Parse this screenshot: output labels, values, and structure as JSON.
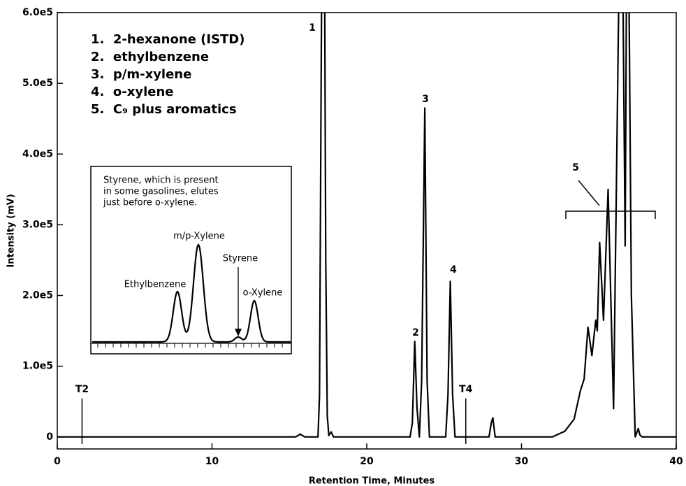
{
  "chart_data": {
    "type": "line",
    "xlabel": "Retention Time, Minutes",
    "ylabel": "Intensity (mV)",
    "xlim": [
      0,
      40
    ],
    "xticks": [
      0,
      10,
      20,
      30,
      40
    ],
    "ylim": [
      -17000,
      600000
    ],
    "yticks": [
      0,
      {
        "value": 100000,
        "label": "1.0e5"
      },
      {
        "value": 200000,
        "label": "2.0e5"
      },
      {
        "value": 300000,
        "label": "3.0e5"
      },
      {
        "value": 400000,
        "label": "4.0e5"
      },
      {
        "value": 500000,
        "label": "5.0e5"
      },
      {
        "value": 600000,
        "label": "6.0e5"
      }
    ],
    "series": [
      {
        "color": "#000000",
        "x": [
          0,
          15.4,
          15.6,
          15.7,
          15.8,
          16.0,
          16.85,
          16.95,
          17.05,
          17.15,
          17.25,
          17.35,
          17.45,
          17.55,
          17.7,
          17.85,
          22.8,
          22.95,
          23.1,
          23.25,
          23.4,
          23.55,
          23.75,
          23.9,
          24.05,
          25.1,
          25.25,
          25.4,
          25.55,
          25.7,
          27.9,
          28.05,
          28.15,
          28.3,
          32.0,
          32.8,
          33.4,
          33.8,
          34.05,
          34.3,
          34.55,
          34.8,
          34.9,
          35.05,
          35.3,
          35.6,
          35.95,
          36.45,
          36.7,
          36.85,
          37.1,
          37.35,
          37.55,
          37.65,
          37.8,
          40
        ],
        "values": [
          0,
          0,
          2500,
          4000,
          2500,
          0,
          0,
          60000,
          500000,
          900000,
          800000,
          250000,
          30000,
          2000,
          7000,
          0,
          0,
          20000,
          135000,
          40000,
          0,
          80000,
          465000,
          80000,
          0,
          0,
          60000,
          220000,
          60000,
          0,
          0,
          20000,
          27000,
          0,
          0,
          8000,
          25000,
          65000,
          82000,
          155000,
          115000,
          165000,
          150000,
          275000,
          165000,
          350000,
          40000,
          900000,
          270000,
          900000,
          200000,
          0,
          12000,
          3000,
          0,
          0
        ]
      }
    ],
    "markers": [
      {
        "label": "T2",
        "x": 1.6
      },
      {
        "label": "T4",
        "x": 26.4
      }
    ],
    "peak_labels": [
      "1",
      "2",
      "3",
      "4",
      "5"
    ],
    "legend_items": [
      "1.  2-hexanone (ISTD)",
      "2.  ethylbenzene",
      "3.  p/m-xylene",
      "4.  o-xylene",
      "5.  C₉ plus aromatics"
    ]
  },
  "inset": {
    "text": [
      "Styrene, which is present",
      "in some gasolines, elutes",
      "just before o-xylene."
    ],
    "labels": [
      "Ethylbenzene",
      "m/p-Xylene",
      "Styrene",
      "o-Xylene"
    ]
  }
}
